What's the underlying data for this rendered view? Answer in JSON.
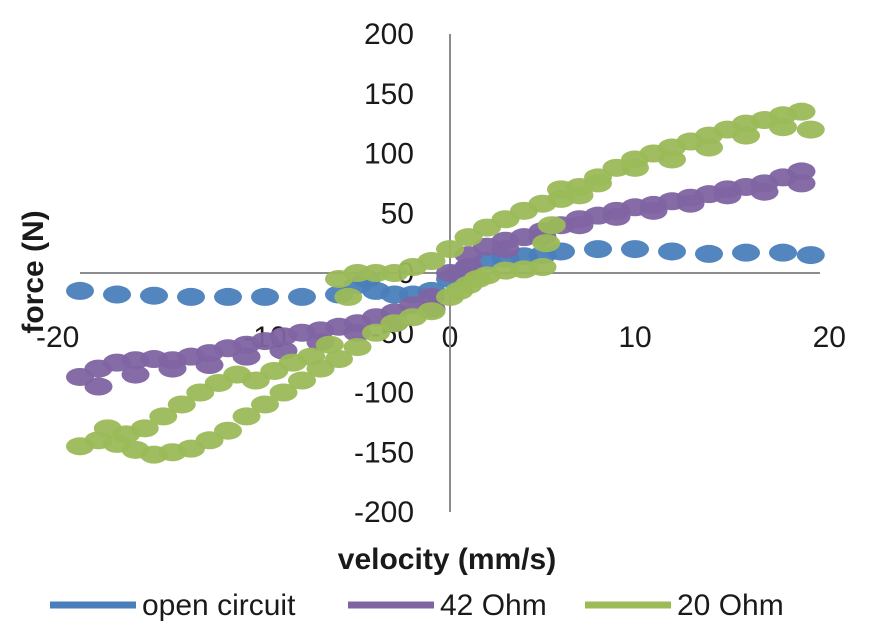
{
  "chart_data": {
    "type": "scatter",
    "title": "",
    "xlabel": "velocity (mm/s)",
    "ylabel": "force (N)",
    "xlim": [
      -20,
      20
    ],
    "ylim": [
      -200,
      200
    ],
    "x_ticks": [
      "-20",
      "-10",
      "0",
      "10",
      "20"
    ],
    "x_tick_values": [
      -20,
      -10,
      0,
      10,
      20
    ],
    "y_ticks": [
      "200",
      "150",
      "100",
      "50",
      "0",
      "-50",
      "-100",
      "-150",
      "-200"
    ],
    "y_tick_values": [
      200,
      150,
      100,
      50,
      0,
      -50,
      -100,
      -150,
      -200
    ],
    "grid": false,
    "legend_position": "bottom",
    "series": [
      {
        "name": "open circuit",
        "color": "#4a7ebb",
        "points": [
          [
            -20,
            -15
          ],
          [
            -18,
            -18
          ],
          [
            -16,
            -19
          ],
          [
            -14,
            -20
          ],
          [
            -12,
            -20
          ],
          [
            -10,
            -20
          ],
          [
            -8,
            -20
          ],
          [
            -6,
            -18
          ],
          [
            -5,
            -10
          ],
          [
            -4.5,
            -5
          ],
          [
            -4,
            -15
          ],
          [
            -3,
            -18
          ],
          [
            -2,
            -18
          ],
          [
            -1,
            -15
          ],
          [
            0,
            -5
          ],
          [
            0.5,
            0
          ],
          [
            1,
            5
          ],
          [
            2,
            10
          ],
          [
            3,
            12
          ],
          [
            4,
            14
          ],
          [
            5,
            15
          ],
          [
            6,
            18
          ],
          [
            8,
            20
          ],
          [
            10,
            20
          ],
          [
            12,
            18
          ],
          [
            14,
            16
          ],
          [
            16,
            17
          ],
          [
            18,
            17
          ],
          [
            19.5,
            15
          ]
        ]
      },
      {
        "name": "42 Ohm",
        "color": "#8064a2",
        "points": [
          [
            -20,
            -87
          ],
          [
            -19,
            -80
          ],
          [
            -18,
            -75
          ],
          [
            -17,
            -73
          ],
          [
            -16,
            -72
          ],
          [
            -15,
            -73
          ],
          [
            -14,
            -70
          ],
          [
            -13,
            -67
          ],
          [
            -12,
            -63
          ],
          [
            -11,
            -60
          ],
          [
            -10,
            -57
          ],
          [
            -9,
            -53
          ],
          [
            -8,
            -50
          ],
          [
            -7,
            -48
          ],
          [
            -6,
            -45
          ],
          [
            -5,
            -42
          ],
          [
            -4,
            -37
          ],
          [
            -3,
            -33
          ],
          [
            -2,
            -27
          ],
          [
            -1,
            -20
          ],
          [
            0,
            0
          ],
          [
            1,
            15
          ],
          [
            2,
            22
          ],
          [
            3,
            27
          ],
          [
            4,
            30
          ],
          [
            5,
            35
          ],
          [
            6,
            40
          ],
          [
            7,
            45
          ],
          [
            8,
            48
          ],
          [
            9,
            52
          ],
          [
            10,
            55
          ],
          [
            11,
            57
          ],
          [
            12,
            60
          ],
          [
            13,
            63
          ],
          [
            14,
            66
          ],
          [
            15,
            70
          ],
          [
            16,
            72
          ],
          [
            17,
            75
          ],
          [
            18,
            80
          ],
          [
            19,
            85
          ],
          [
            -19,
            -95
          ],
          [
            -17,
            -85
          ],
          [
            -15,
            -80
          ],
          [
            -13,
            -77
          ],
          [
            -11,
            -70
          ],
          [
            -9,
            -65
          ],
          [
            -7,
            -58
          ],
          [
            -5,
            -50
          ],
          [
            -3,
            -42
          ],
          [
            -1,
            -30
          ],
          [
            1,
            5
          ],
          [
            3,
            20
          ],
          [
            5,
            30
          ],
          [
            7,
            40
          ],
          [
            9,
            47
          ],
          [
            11,
            52
          ],
          [
            13,
            58
          ],
          [
            15,
            65
          ],
          [
            17,
            68
          ],
          [
            19,
            75
          ]
        ]
      },
      {
        "name": "20 Ohm",
        "color": "#9bbb59",
        "points": [
          [
            -20,
            -145
          ],
          [
            -19,
            -140
          ],
          [
            -18,
            -143
          ],
          [
            -17,
            -148
          ],
          [
            -16,
            -152
          ],
          [
            -15,
            -150
          ],
          [
            -14,
            -147
          ],
          [
            -13,
            -140
          ],
          [
            -12,
            -132
          ],
          [
            -11,
            -120
          ],
          [
            -10,
            -110
          ],
          [
            -9,
            -100
          ],
          [
            -8,
            -90
          ],
          [
            -7,
            -80
          ],
          [
            -6,
            -72
          ],
          [
            -5,
            -62
          ],
          [
            -4,
            -50
          ],
          [
            -3,
            -42
          ],
          [
            -2,
            -37
          ],
          [
            -1,
            -32
          ],
          [
            0,
            -20
          ],
          [
            0.5,
            -15
          ],
          [
            1,
            -10
          ],
          [
            1.5,
            -5
          ],
          [
            2,
            -2
          ],
          [
            3,
            2
          ],
          [
            4,
            3
          ],
          [
            5,
            5
          ],
          [
            5.2,
            25
          ],
          [
            5.5,
            40
          ],
          [
            6,
            62
          ],
          [
            7,
            72
          ],
          [
            8,
            80
          ],
          [
            9,
            88
          ],
          [
            10,
            95
          ],
          [
            11,
            100
          ],
          [
            12,
            105
          ],
          [
            13,
            110
          ],
          [
            14,
            115
          ],
          [
            15,
            120
          ],
          [
            16,
            125
          ],
          [
            17,
            128
          ],
          [
            18,
            132
          ],
          [
            19,
            135
          ],
          [
            -5.5,
            -20
          ],
          [
            -6,
            -5
          ],
          [
            -5,
            0
          ],
          [
            -4,
            0
          ],
          [
            -3,
            0
          ],
          [
            -2,
            5
          ],
          [
            -1,
            10
          ],
          [
            0,
            20
          ],
          [
            1,
            30
          ],
          [
            2,
            38
          ],
          [
            3,
            45
          ],
          [
            4,
            52
          ],
          [
            5,
            58
          ],
          [
            6,
            70
          ],
          [
            7,
            65
          ],
          [
            8,
            75
          ],
          [
            10,
            88
          ],
          [
            12,
            95
          ],
          [
            14,
            105
          ],
          [
            16,
            115
          ],
          [
            18,
            122
          ],
          [
            19.5,
            120
          ],
          [
            -18.5,
            -130
          ],
          [
            -17.5,
            -135
          ],
          [
            -16.5,
            -130
          ],
          [
            -15.5,
            -120
          ],
          [
            -14.5,
            -110
          ],
          [
            -13.5,
            -100
          ],
          [
            -12.5,
            -92
          ],
          [
            -11.5,
            -85
          ],
          [
            -10.5,
            -90
          ],
          [
            -9.5,
            -82
          ],
          [
            -8.5,
            -75
          ],
          [
            -7.5,
            -70
          ],
          [
            -6.5,
            -60
          ]
        ]
      }
    ]
  }
}
